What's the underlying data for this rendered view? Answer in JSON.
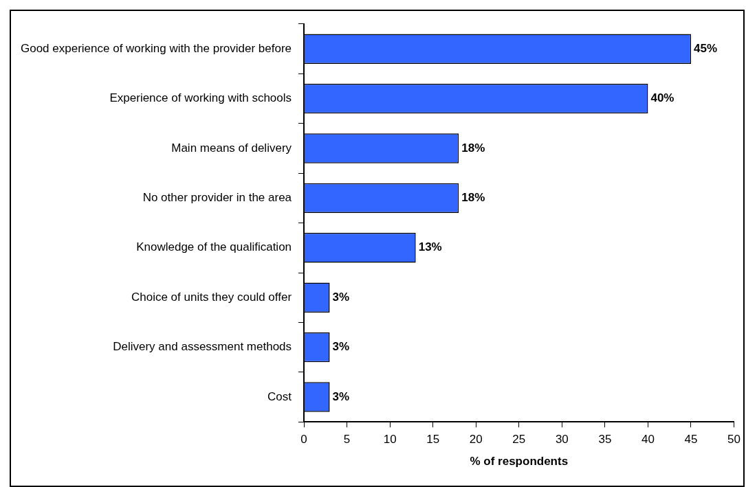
{
  "chart_data": {
    "type": "bar",
    "orientation": "horizontal",
    "xlabel": "% of respondents",
    "categories": [
      "Good experience of working with the provider before",
      "Experience of working with schools",
      "Main means of delivery",
      "No other provider in the area",
      "Knowledge of the qualification",
      "Choice of units they could offer",
      "Delivery and assessment methods",
      "Cost"
    ],
    "values": [
      45,
      40,
      18,
      18,
      13,
      3,
      3,
      3
    ],
    "value_labels": [
      "45%",
      "40%",
      "18%",
      "18%",
      "13%",
      "3%",
      "3%",
      "3%"
    ],
    "color": "#3366ff",
    "xlim": [
      0,
      50
    ],
    "xticks": [
      0,
      5,
      10,
      15,
      20,
      25,
      30,
      35,
      40,
      45,
      50
    ],
    "grid": false,
    "legend": false
  }
}
